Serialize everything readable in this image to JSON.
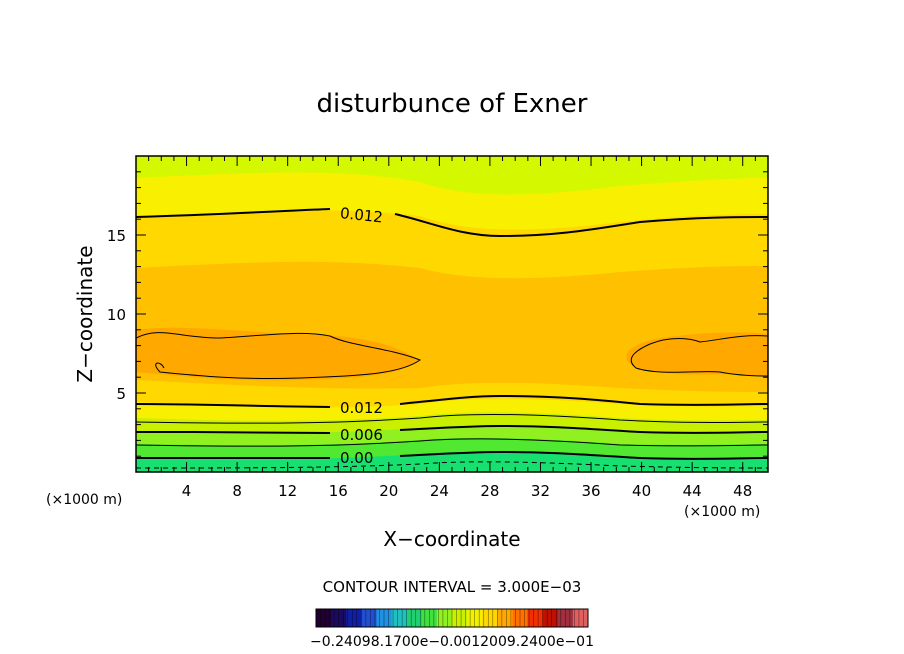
{
  "chart_data": {
    "type": "contour",
    "title": "disturbunce of Exner",
    "xlabel": "X−coordinate",
    "ylabel": "Z−coordinate",
    "x_unit": "(×1000 m)",
    "y_unit": "(×1000 m)",
    "xlim": [
      0,
      50
    ],
    "ylim": [
      0,
      20
    ],
    "x_ticks": [
      4,
      8,
      12,
      16,
      20,
      24,
      28,
      32,
      36,
      40,
      44,
      48
    ],
    "x_tick_labels": [
      "4",
      "8",
      "12",
      "16",
      "20",
      "24",
      "28",
      "32",
      "36",
      "40",
      "44",
      "48"
    ],
    "y_ticks": [
      5,
      10,
      15
    ],
    "y_tick_labels": [
      "5",
      "10",
      "15"
    ],
    "contour_interval_label": "CONTOUR INTERVAL = 3.000E−03",
    "contour_labels": [
      {
        "text": "0.012",
        "x": 16.2,
        "z": 16.5
      },
      {
        "text": "0.012",
        "x": 16.2,
        "z": 4.2
      },
      {
        "text": "0.006",
        "x": 16.2,
        "z": 2.4
      },
      {
        "text": "0.00",
        "x": 16.2,
        "z": 0.95
      }
    ],
    "colorbar": {
      "labels_text": "−0.24098.1700e−0.0012009.2400e−01",
      "colors": [
        "#200030",
        "#1a0a60",
        "#1020a0",
        "#2050d0",
        "#2090e0",
        "#20c0c0",
        "#20d070",
        "#40e040",
        "#90f020",
        "#c8f000",
        "#f0f000",
        "#ffd800",
        "#ffa800",
        "#ff7000",
        "#f03000",
        "#c01000",
        "#a03040",
        "#e06060"
      ]
    },
    "field_colors": {
      "lowest": "#18e070",
      "green": "#50e830",
      "lime": "#a8f000",
      "yellow_green": "#d4f800",
      "yellow": "#f8f000",
      "gold": "#ffd800",
      "orange_light": "#ffc000",
      "orange": "#ffa800"
    }
  }
}
